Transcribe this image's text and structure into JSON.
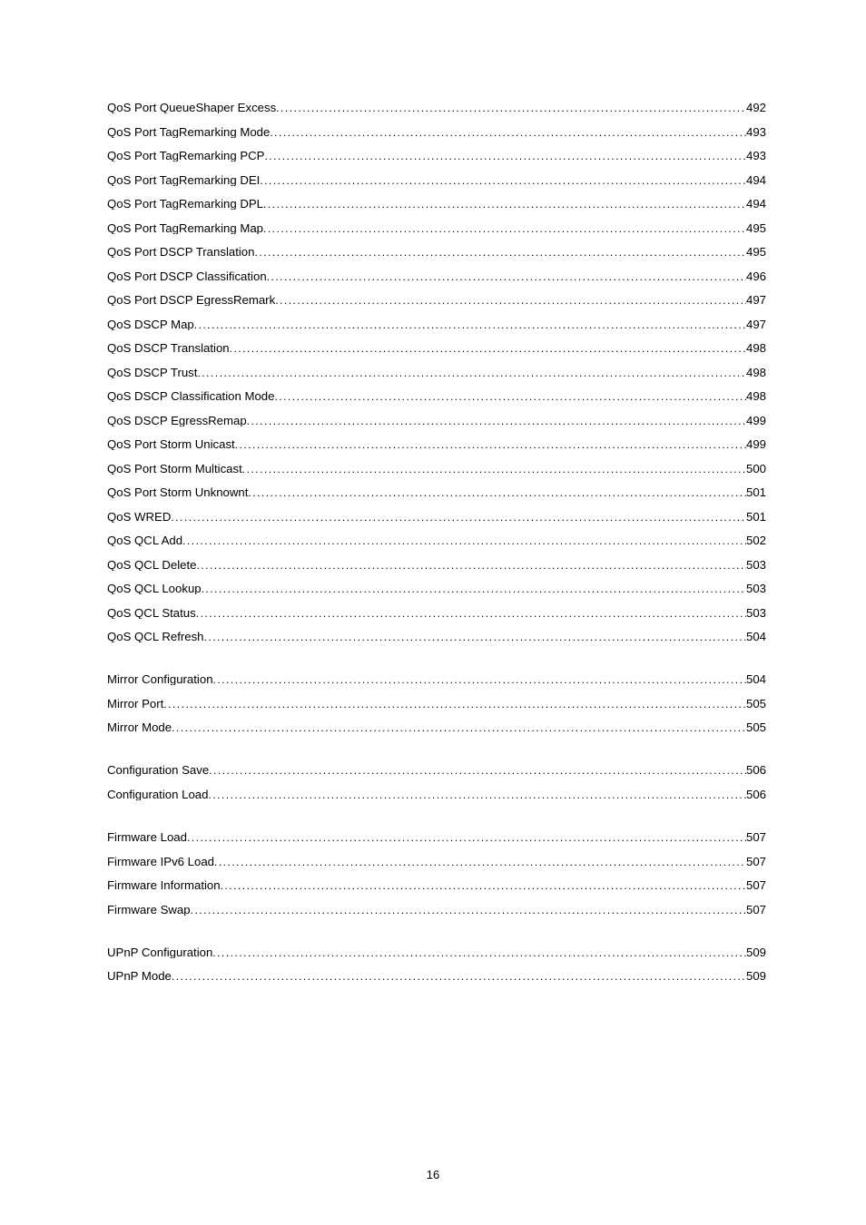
{
  "sections": [
    {
      "items": [
        {
          "label": "QoS Port QueueShaper Excess",
          "page": "492"
        },
        {
          "label": "QoS Port TagRemarking Mode",
          "page": "493"
        },
        {
          "label": "QoS Port TagRemarking PCP",
          "page": "493"
        },
        {
          "label": "QoS Port TagRemarking DEI",
          "page": "494"
        },
        {
          "label": "QoS Port TagRemarking DPL",
          "page": "494"
        },
        {
          "label": "QoS Port TagRemarking Map",
          "page": "495"
        },
        {
          "label": "QoS Port DSCP Translation",
          "page": "495"
        },
        {
          "label": "QoS Port DSCP Classification",
          "page": "496"
        },
        {
          "label": "QoS Port DSCP EgressRemark",
          "page": "497"
        },
        {
          "label": "QoS DSCP Map",
          "page": "497"
        },
        {
          "label": "QoS DSCP Translation",
          "page": "498"
        },
        {
          "label": "QoS DSCP Trust",
          "page": "498"
        },
        {
          "label": "QoS DSCP Classification Mode",
          "page": "498"
        },
        {
          "label": "QoS DSCP EgressRemap",
          "page": "499"
        },
        {
          "label": "QoS Port Storm Unicast",
          "page": "499"
        },
        {
          "label": "QoS Port Storm Multicast",
          "page": "500"
        },
        {
          "label": "QoS Port Storm Unknownt",
          "page": "501"
        },
        {
          "label": "QoS WRED",
          "page": "501"
        },
        {
          "label": "QoS QCL Add",
          "page": "502"
        },
        {
          "label": "QoS QCL Delete",
          "page": "503"
        },
        {
          "label": "QoS QCL Lookup",
          "page": "503"
        },
        {
          "label": "QoS QCL Status",
          "page": "503"
        },
        {
          "label": "QoS QCL Refresh",
          "page": "504"
        }
      ]
    },
    {
      "items": [
        {
          "label": "Mirror Configuration",
          "page": "504"
        },
        {
          "label": "Mirror Port",
          "page": "505"
        },
        {
          "label": "Mirror Mode",
          "page": "505"
        }
      ]
    },
    {
      "items": [
        {
          "label": "Configuration Save",
          "page": "506"
        },
        {
          "label": "Configuration Load",
          "page": "506"
        }
      ]
    },
    {
      "items": [
        {
          "label": "Firmware Load",
          "page": "507"
        },
        {
          "label": "Firmware IPv6 Load",
          "page": "507"
        },
        {
          "label": "Firmware Information",
          "page": "507"
        },
        {
          "label": "Firmware Swap",
          "page": "507"
        }
      ]
    },
    {
      "items": [
        {
          "label": "UPnP Configuration",
          "page": "509"
        },
        {
          "label": "UPnP Mode",
          "page": "509"
        }
      ]
    }
  ],
  "footer": {
    "page_number": "16"
  }
}
